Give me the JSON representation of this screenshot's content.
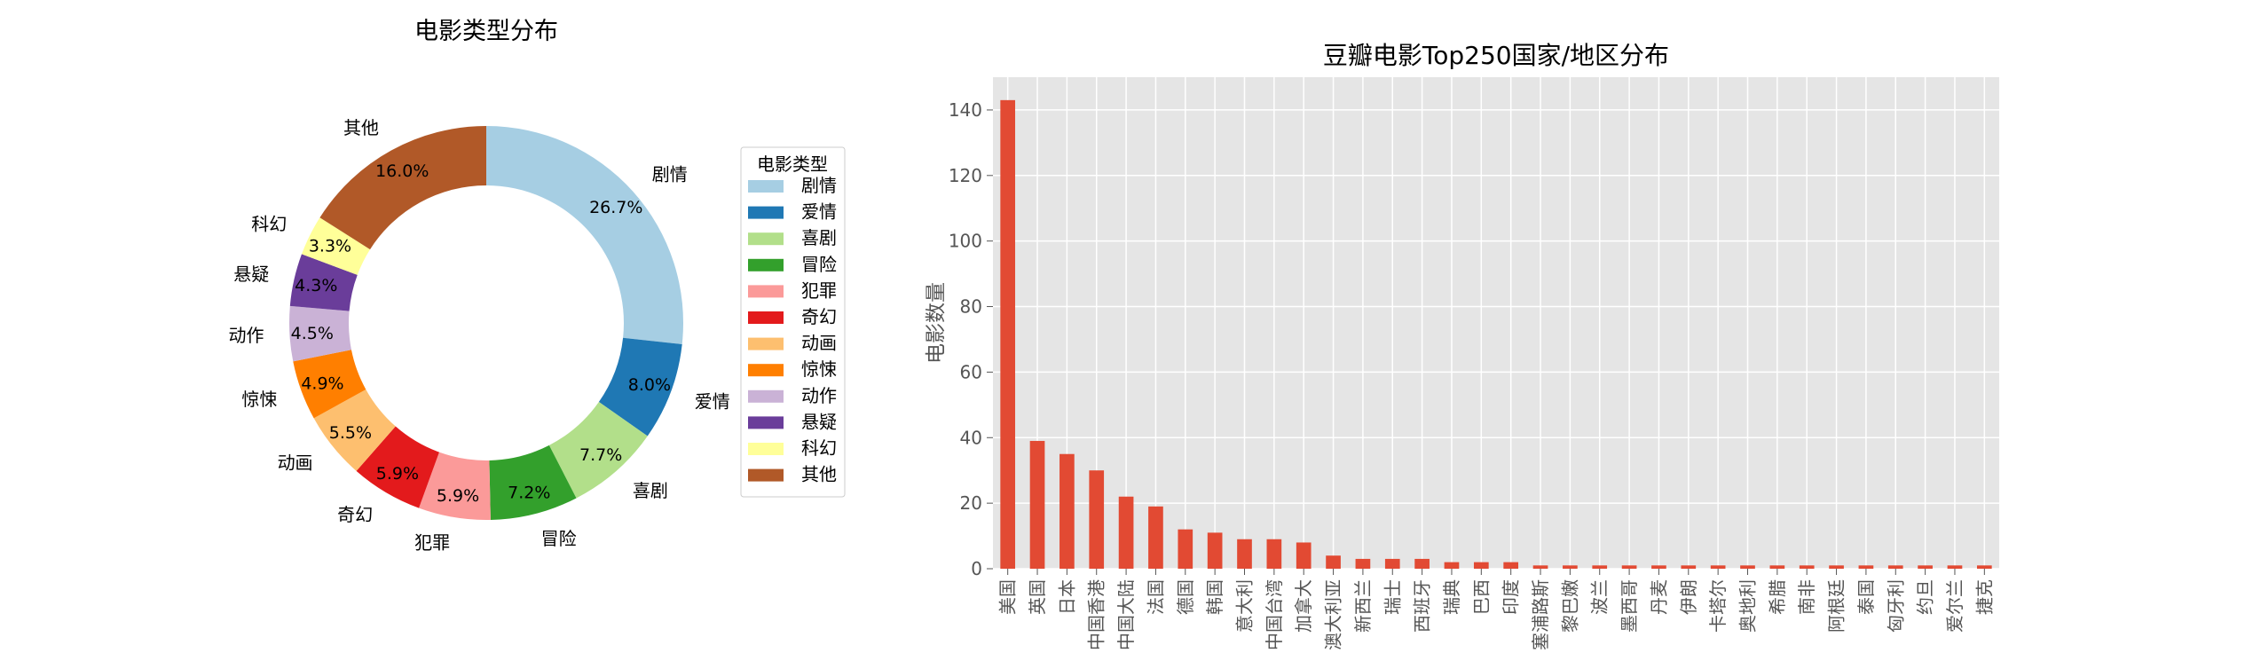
{
  "chart_data": [
    {
      "type": "pie",
      "style": "donut",
      "title": "电影类型分布",
      "legend_title": "电影类型",
      "legend_position": "right",
      "categories": [
        "剧情",
        "爱情",
        "喜剧",
        "冒险",
        "犯罪",
        "奇幻",
        "动画",
        "惊悚",
        "动作",
        "悬疑",
        "科幻",
        "其他"
      ],
      "values": [
        26.7,
        8.0,
        7.7,
        7.2,
        5.9,
        5.9,
        5.5,
        4.9,
        4.5,
        4.3,
        3.3,
        16.0
      ],
      "labels": [
        "26.7%",
        "8.0%",
        "7.7%",
        "7.2%",
        "5.9%",
        "5.9%",
        "5.5%",
        "4.9%",
        "4.5%",
        "4.3%",
        "3.3%",
        "16.0%"
      ],
      "colors": [
        "#a6cee3",
        "#1f78b4",
        "#b2df8a",
        "#33a02c",
        "#fb9a99",
        "#e31a1c",
        "#fdbf6f",
        "#ff7f00",
        "#cab2d6",
        "#6a3d9a",
        "#ffff99",
        "#b15928"
      ]
    },
    {
      "type": "bar",
      "title": "豆瓣电影Top250国家/地区分布",
      "xlabel": "",
      "ylabel": "电影数量",
      "ylim": [
        0,
        150
      ],
      "yticks": [
        0,
        20,
        40,
        60,
        80,
        100,
        120,
        140
      ],
      "grid": true,
      "bar_color": "#e24a33",
      "background": "#e5e5e5",
      "categories": [
        "美国",
        "英国",
        "日本",
        "中国香港",
        "中国大陆",
        "法国",
        "德国",
        "韩国",
        "意大利",
        "中国台湾",
        "加拿大",
        "澳大利亚",
        "新西兰",
        "瑞士",
        "西班牙",
        "瑞典",
        "巴西",
        "印度",
        "塞浦路斯",
        "黎巴嫩",
        "波兰",
        "墨西哥",
        "丹麦",
        "伊朗",
        "卡塔尔",
        "奥地利",
        "希腊",
        "南非",
        "阿根廷",
        "泰国",
        "匈牙利",
        "约旦",
        "爱尔兰",
        "捷克"
      ],
      "values": [
        143,
        39,
        35,
        30,
        22,
        19,
        12,
        11,
        9,
        9,
        8,
        4,
        3,
        3,
        3,
        2,
        2,
        2,
        1,
        1,
        1,
        1,
        1,
        1,
        1,
        1,
        1,
        1,
        1,
        1,
        1,
        1,
        1,
        1
      ]
    }
  ]
}
